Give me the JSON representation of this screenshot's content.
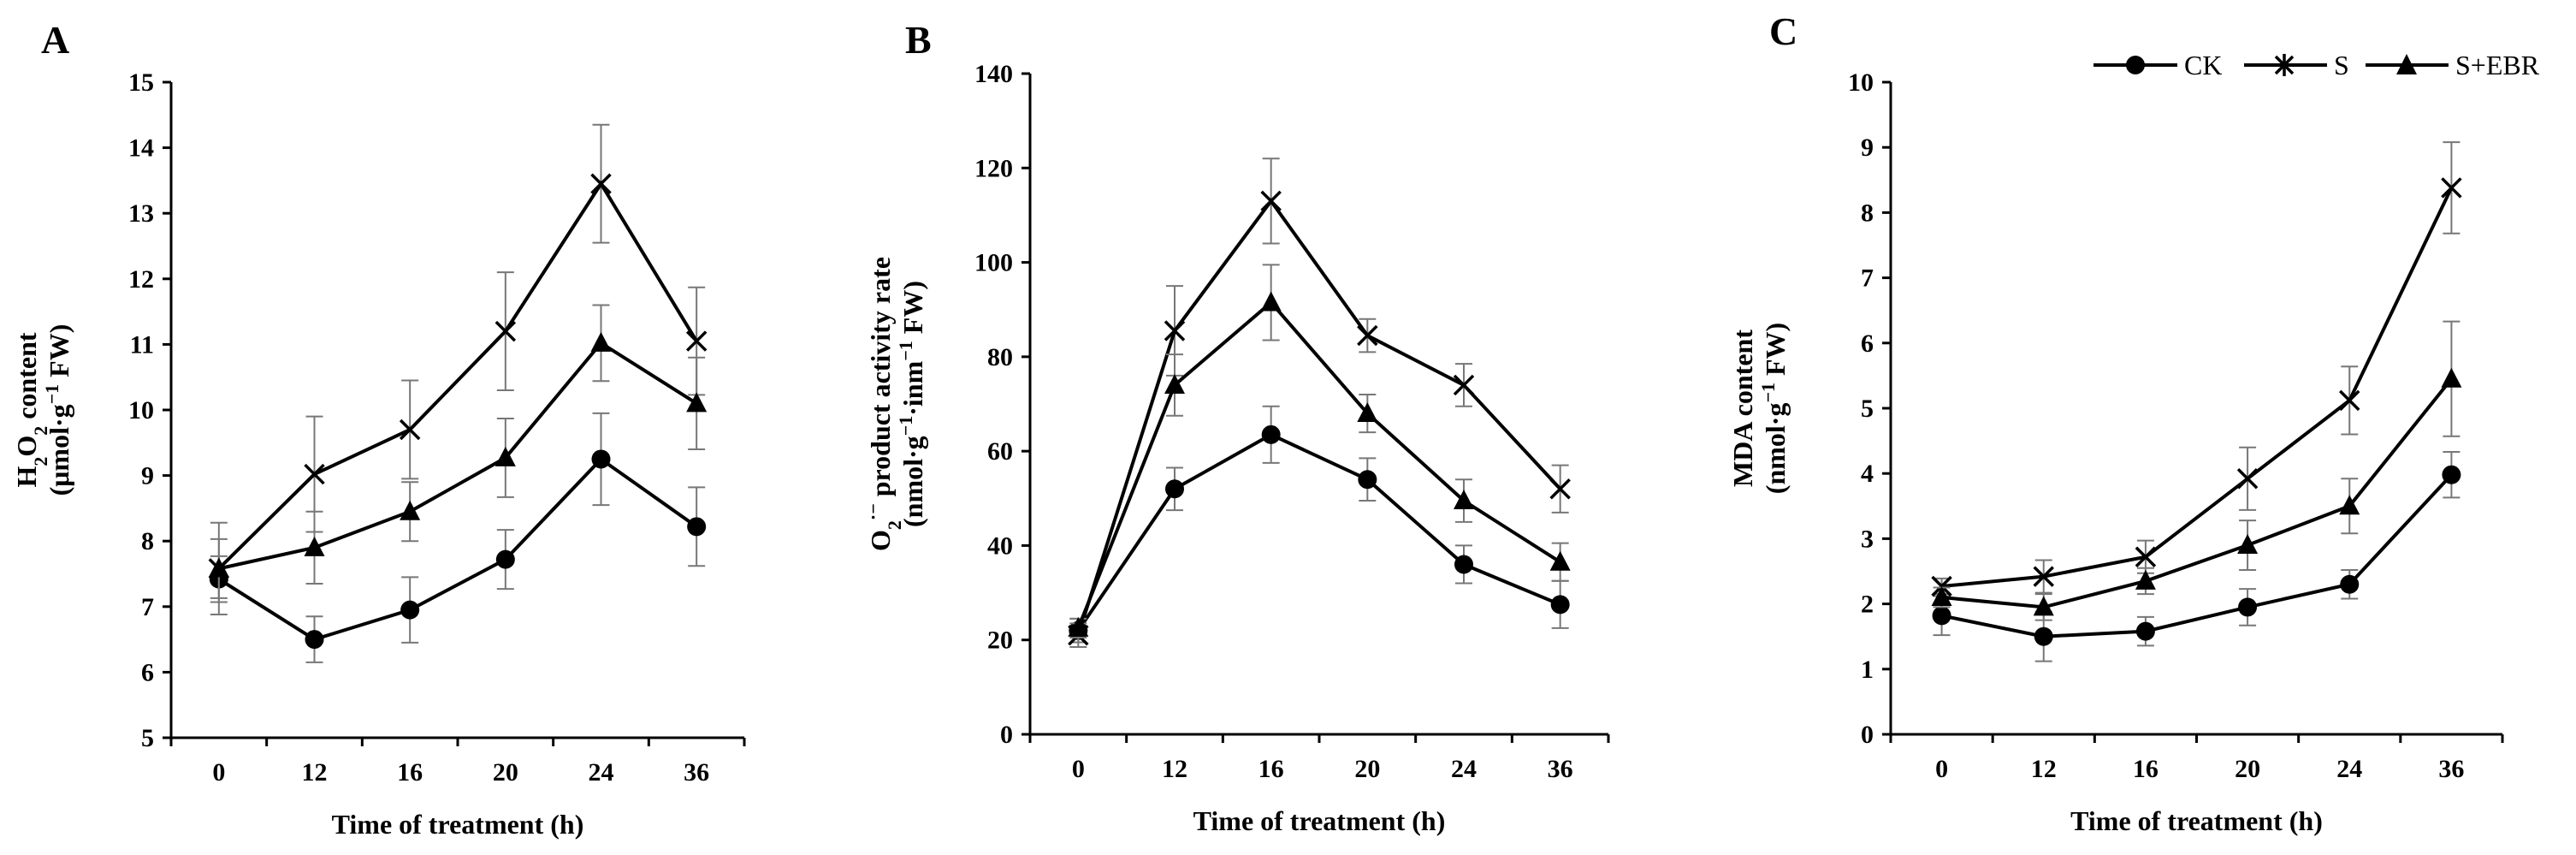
{
  "legend": {
    "entries": [
      {
        "name": "CK",
        "marker": "circle"
      },
      {
        "name": "S",
        "marker": "asterisk"
      },
      {
        "name": "S+EBR",
        "marker": "triangle"
      }
    ],
    "placement": "top-right"
  },
  "chart_data": [
    {
      "panel": "A",
      "type": "line",
      "categories": [
        "0",
        "12",
        "16",
        "20",
        "24",
        "36"
      ],
      "xlabel": "Time of treatment (h)",
      "ylabel": {
        "line1": {
          "pre": "H",
          "sub": "2",
          "mid": "O",
          "sub2": "2",
          "post": " content"
        },
        "line2": {
          "pre": "(μmol·g",
          "sup": "−1",
          "post": " FW)"
        }
      },
      "ylim": [
        5,
        15
      ],
      "yticks": [
        5,
        6,
        7,
        8,
        9,
        10,
        11,
        12,
        13,
        14,
        15
      ],
      "series": [
        {
          "name": "CK",
          "marker": "circle",
          "values": [
            7.42,
            6.5,
            6.95,
            7.72,
            9.25,
            8.22
          ],
          "errors": [
            0.35,
            0.35,
            0.5,
            0.45,
            0.7,
            0.6
          ]
        },
        {
          "name": "S",
          "marker": "asterisk",
          "values": [
            7.58,
            9.02,
            9.7,
            11.2,
            13.45,
            11.05
          ],
          "errors": [
            0.7,
            0.88,
            0.75,
            0.9,
            0.9,
            0.82
          ]
        },
        {
          "name": "S+EBR",
          "marker": "triangle",
          "values": [
            7.58,
            7.9,
            8.45,
            9.27,
            11.02,
            10.1
          ],
          "errors": [
            0.45,
            0.55,
            0.45,
            0.6,
            0.58,
            0.7
          ]
        }
      ]
    },
    {
      "panel": "B",
      "type": "line",
      "categories": [
        "0",
        "12",
        "16",
        "20",
        "24",
        "36"
      ],
      "xlabel": "Time of treatment (h)",
      "ylabel": {
        "line1": {
          "pre": "O",
          "sub": "2",
          "sup": "·−",
          "post": " product activity rate"
        },
        "line2": {
          "pre": "(nmol·g",
          "sup": "−1",
          "mid": "·inm",
          "sup2": "−1",
          "post": " FW)"
        }
      },
      "ylim": [
        0,
        140
      ],
      "yticks": [
        0,
        20,
        40,
        60,
        80,
        100,
        120,
        140
      ],
      "series": [
        {
          "name": "CK",
          "marker": "circle",
          "values": [
            22,
            52,
            63.5,
            54,
            36,
            27.5
          ],
          "errors": [
            2.5,
            4.5,
            6,
            4.5,
            4,
            5
          ]
        },
        {
          "name": "S",
          "marker": "asterisk",
          "values": [
            21,
            85.5,
            113,
            84.5,
            74,
            52
          ],
          "errors": [
            2.5,
            9.5,
            9,
            3.5,
            4.5,
            5
          ]
        },
        {
          "name": "S+EBR",
          "marker": "triangle",
          "values": [
            22.5,
            74,
            91.5,
            68,
            49.5,
            36.5
          ],
          "errors": [
            2,
            6.5,
            8,
            4,
            4.5,
            4
          ]
        }
      ]
    },
    {
      "panel": "C",
      "type": "line",
      "categories": [
        "0",
        "12",
        "16",
        "20",
        "24",
        "36"
      ],
      "xlabel": "Time of treatment (h)",
      "ylabel": {
        "line1": {
          "pre": "MDA content"
        },
        "line2": {
          "pre": "(nmol·g",
          "sup": "−1",
          "post": " FW)"
        }
      },
      "ylim": [
        0,
        10
      ],
      "yticks": [
        0,
        1,
        2,
        3,
        4,
        5,
        6,
        7,
        8,
        9,
        10
      ],
      "series": [
        {
          "name": "CK",
          "marker": "circle",
          "values": [
            1.82,
            1.5,
            1.58,
            1.95,
            2.3,
            3.98
          ],
          "errors": [
            0.3,
            0.38,
            0.22,
            0.28,
            0.22,
            0.35
          ]
        },
        {
          "name": "S",
          "marker": "asterisk",
          "values": [
            2.27,
            2.42,
            2.72,
            3.92,
            5.12,
            8.38
          ],
          "errors": [
            0.12,
            0.25,
            0.25,
            0.48,
            0.52,
            0.7
          ]
        },
        {
          "name": "S+EBR",
          "marker": "triangle",
          "values": [
            2.1,
            1.95,
            2.35,
            2.9,
            3.5,
            5.45
          ],
          "errors": [
            0.15,
            0.2,
            0.2,
            0.38,
            0.42,
            0.88
          ]
        }
      ]
    }
  ]
}
